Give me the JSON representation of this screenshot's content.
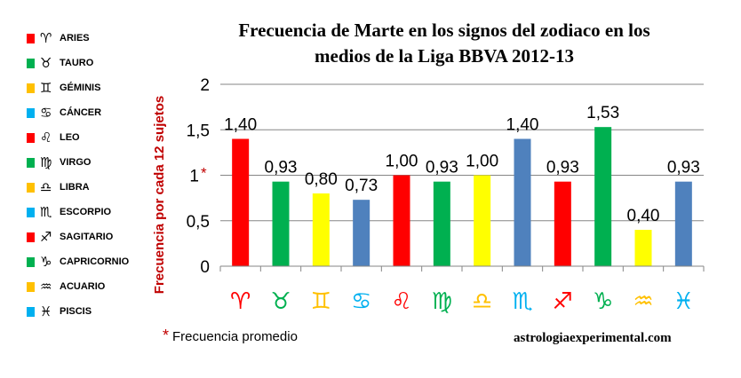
{
  "legend": [
    {
      "symbol": "♈",
      "label": "ARIES",
      "color": "#ff0000"
    },
    {
      "symbol": "♉",
      "label": "TAURO",
      "color": "#00b050"
    },
    {
      "symbol": "♊",
      "label": "GÉMINIS",
      "color": "#ffc000"
    },
    {
      "symbol": "♋",
      "label": "CÁNCER",
      "color": "#00b0f0"
    },
    {
      "symbol": "♌",
      "label": "LEO",
      "color": "#ff0000"
    },
    {
      "symbol": "♍",
      "label": "VIRGO",
      "color": "#00b050"
    },
    {
      "symbol": "♎",
      "label": "LIBRA",
      "color": "#ffc000"
    },
    {
      "symbol": "♏",
      "label": "ESCORPIO",
      "color": "#00b0f0"
    },
    {
      "symbol": "♐",
      "label": "SAGITARIO",
      "color": "#ff0000"
    },
    {
      "symbol": "♑",
      "label": "CAPRICORNIO",
      "color": "#00b050"
    },
    {
      "symbol": "♒",
      "label": "ACUARIO",
      "color": "#ffc000"
    },
    {
      "symbol": "♓",
      "label": "PISCIS",
      "color": "#00b0f0"
    }
  ],
  "footnote": {
    "asterisk": "*",
    "text": "Frecuencia promedio"
  },
  "source": "astrologiaexperimental.com",
  "chart_data": {
    "type": "bar",
    "title_lines": [
      "Frecuencia de Marte en los signos del zodiaco en los",
      "medios de la Liga BBVA 2012-13"
    ],
    "ylabel": "Frecuencia por cada 12 sujetos",
    "ylim": [
      0,
      2
    ],
    "yticks": [
      "0",
      "0,5",
      "1",
      "1,5",
      "2"
    ],
    "yticks_values": [
      0,
      0.5,
      1,
      1.5,
      2
    ],
    "marked_tick": {
      "value": 1,
      "mark": "*",
      "color": "#c00000"
    },
    "grid": true,
    "categories": [
      "♈",
      "♉",
      "♊",
      "♋",
      "♌",
      "♍",
      "♎",
      "♏",
      "♐",
      "♑",
      "♒",
      "♓"
    ],
    "category_colors": [
      "#ff0000",
      "#00b050",
      "#ffc000",
      "#00b0f0",
      "#ff0000",
      "#00b050",
      "#ffc000",
      "#00b0f0",
      "#ff0000",
      "#00b050",
      "#ffc000",
      "#00b0f0"
    ],
    "values": [
      1.4,
      0.93,
      0.8,
      0.73,
      1.0,
      0.93,
      1.0,
      1.4,
      0.93,
      1.53,
      0.4,
      0.93
    ],
    "data_labels": [
      "1,40",
      "0,93",
      "0,80",
      "0,73",
      "1,00",
      "0,93",
      "1,00",
      "1,40",
      "0,93",
      "1,53",
      "0,40",
      "0,93"
    ],
    "bar_colors": [
      "#ff0000",
      "#00b050",
      "#ffff00",
      "#4f81bd",
      "#ff0000",
      "#00b050",
      "#ffff00",
      "#4f81bd",
      "#ff0000",
      "#00b050",
      "#ffff00",
      "#4f81bd"
    ],
    "label_color": "#000000",
    "ylabel_color": "#c00000",
    "grid_color": "#868686"
  }
}
